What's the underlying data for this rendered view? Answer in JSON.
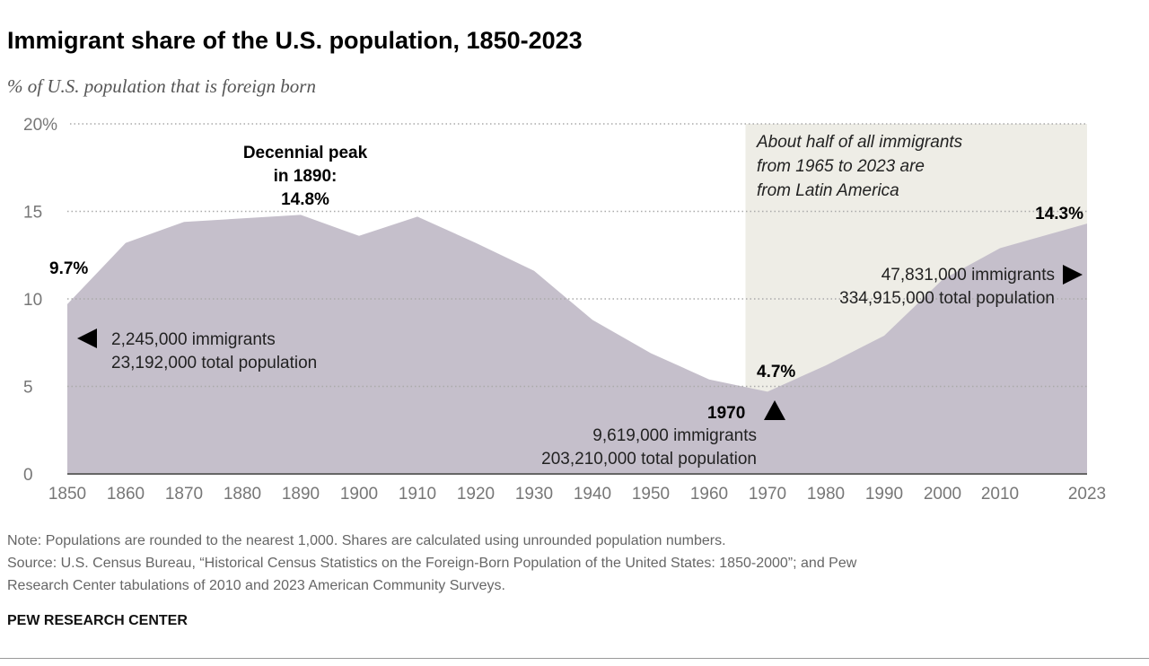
{
  "chart_data": {
    "type": "area",
    "title": "Immigrant share of the U.S. population, 1850-2023",
    "subtitle": "% of U.S. population that is foreign born",
    "x": [
      1850,
      1860,
      1870,
      1890,
      1900,
      1910,
      1920,
      1930,
      1940,
      1950,
      1960,
      1970,
      1980,
      1990,
      2000,
      2010,
      2023
    ],
    "values": [
      9.7,
      13.2,
      14.4,
      14.8,
      13.6,
      14.7,
      13.2,
      11.6,
      8.8,
      6.9,
      5.4,
      4.7,
      6.2,
      7.9,
      11.1,
      12.9,
      14.3
    ],
    "ylim": [
      0,
      20
    ],
    "y_ticks": [
      "0",
      "5",
      "10",
      "15",
      "20%"
    ],
    "x_ticks": [
      "1850",
      "1860",
      "1870",
      "1880",
      "1890",
      "1900",
      "1910",
      "1920",
      "1930",
      "1940",
      "1950",
      "1960",
      "1970",
      "1980",
      "1990",
      "2000",
      "2010",
      "2023"
    ],
    "grid": true,
    "highlight_range": [
      1965,
      2023
    ],
    "colors": {
      "area": "#c5bfcb",
      "highlight": "#eeede6",
      "grid": "#aaaaaa",
      "axis": "#777777"
    },
    "annotations": {
      "peak": [
        "Decennial peak",
        "in 1890:",
        "14.8%"
      ],
      "start_value": "9.7%",
      "start_detail": [
        "2,245,000 immigrants",
        "23,192,000 total population"
      ],
      "low_value": "4.7%",
      "low_year": "1970",
      "low_detail": [
        "9,619,000 immigrants",
        "203,210,000 total population"
      ],
      "end_value": "14.3%",
      "end_detail": [
        "47,831,000 immigrants",
        "334,915,000 total population"
      ],
      "highlight_note": [
        "About half of all immigrants",
        "from 1965 to 2023 are",
        "from Latin America"
      ]
    }
  },
  "footer": {
    "note": "Note: Populations are rounded to the nearest 1,000. Shares are calculated using unrounded population numbers.",
    "source1": "Source: U.S. Census Bureau, “Historical Census Statistics on the Foreign-Born Population of the United States: 1850-2000”; and Pew",
    "source2": "Research Center tabulations of 2010 and 2023 American Community Surveys.",
    "brand": "PEW RESEARCH CENTER"
  }
}
